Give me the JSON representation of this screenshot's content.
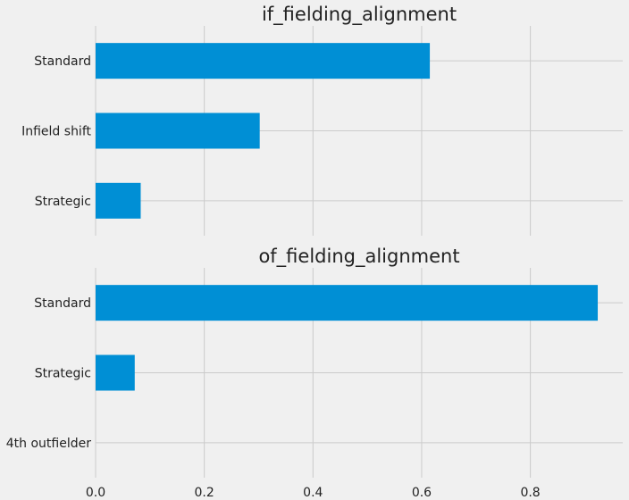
{
  "chart_data": [
    {
      "type": "bar",
      "orientation": "horizontal",
      "title": "if_fielding_alignment",
      "categories": [
        "Standard",
        "Infield shift",
        "Strategic"
      ],
      "values": [
        0.615,
        0.302,
        0.083
      ],
      "xlim": [
        0,
        0.97
      ],
      "x_ticks": [
        "0.0",
        "0.2",
        "0.4",
        "0.6",
        "0.8"
      ],
      "x_tick_values": [
        0,
        0.2,
        0.4,
        0.6,
        0.8
      ],
      "show_x_tick_labels": false,
      "grid": true,
      "bar_color": "#008fd5"
    },
    {
      "type": "bar",
      "orientation": "horizontal",
      "title": "of_fielding_alignment",
      "categories": [
        "Standard",
        "Strategic",
        "4th outfielder"
      ],
      "values": [
        0.924,
        0.072,
        0.0
      ],
      "xlim": [
        0,
        0.97
      ],
      "x_ticks": [
        "0.0",
        "0.2",
        "0.4",
        "0.6",
        "0.8"
      ],
      "x_tick_values": [
        0,
        0.2,
        0.4,
        0.6,
        0.8
      ],
      "show_x_tick_labels": true,
      "grid": true,
      "bar_color": "#008fd5"
    }
  ],
  "colors": {
    "background": "#f0f0f0",
    "grid": "#cbcbcb",
    "bar": "#008fd5",
    "text": "#222222"
  }
}
